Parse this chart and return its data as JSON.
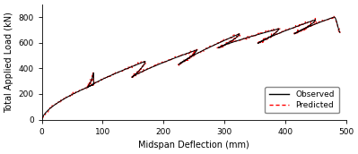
{
  "xlabel": "Midspan Deflection (mm)",
  "ylabel": "Total Applied Load (kN)",
  "xlim": [
    0,
    500
  ],
  "ylim": [
    0,
    900
  ],
  "xticks": [
    0,
    100,
    200,
    300,
    400,
    500
  ],
  "yticks": [
    0,
    200,
    400,
    600,
    800
  ],
  "observed_color": "#000000",
  "predicted_color": "#ff0000",
  "background_color": "#ffffff",
  "legend_observed": "Observed",
  "legend_predicted": "Predicted",
  "figsize": [
    3.99,
    1.72
  ],
  "dpi": 100,
  "cycles": [
    {
      "x_load": 85,
      "y_load": 365,
      "x_unload": 75,
      "y_unload": 250,
      "x_reload": 80
    },
    {
      "x_load": 170,
      "y_load": 455,
      "x_unload": 148,
      "y_unload": 330,
      "x_reload": 160
    },
    {
      "x_load": 255,
      "y_load": 545,
      "x_unload": 225,
      "y_unload": 430,
      "x_reload": 240
    },
    {
      "x_load": 325,
      "y_load": 670,
      "x_unload": 290,
      "y_unload": 560,
      "x_reload": 310
    },
    {
      "x_load": 390,
      "y_load": 710,
      "x_unload": 355,
      "y_unload": 595,
      "x_reload": 375
    },
    {
      "x_load": 450,
      "y_load": 780,
      "x_unload": 415,
      "y_unload": 670,
      "x_reload": 435
    }
  ]
}
